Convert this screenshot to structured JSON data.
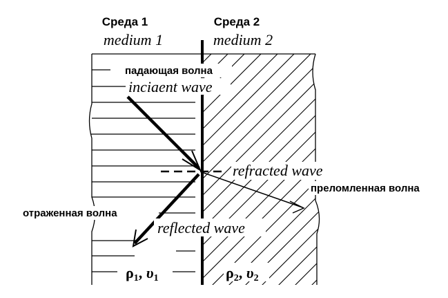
{
  "media": {
    "m1": {
      "title_ru": "Среда 1",
      "title_en": "medium 1",
      "density": "ρ",
      "speed": "υ",
      "sub": "1"
    },
    "m2": {
      "title_ru": "Среда 2",
      "title_en": "medium 2",
      "density": "ρ",
      "speed": "υ",
      "sub": "2"
    }
  },
  "waves": {
    "incident": {
      "ru": "падающая волна",
      "en": "inciaent wave"
    },
    "refracted": {
      "ru": "преломленная волна",
      "en": "refracted wave"
    },
    "reflected": {
      "ru": "отраженная волна",
      "en": "reflected wave"
    }
  },
  "colors": {
    "ink": "#000000",
    "background": "#ffffff"
  }
}
